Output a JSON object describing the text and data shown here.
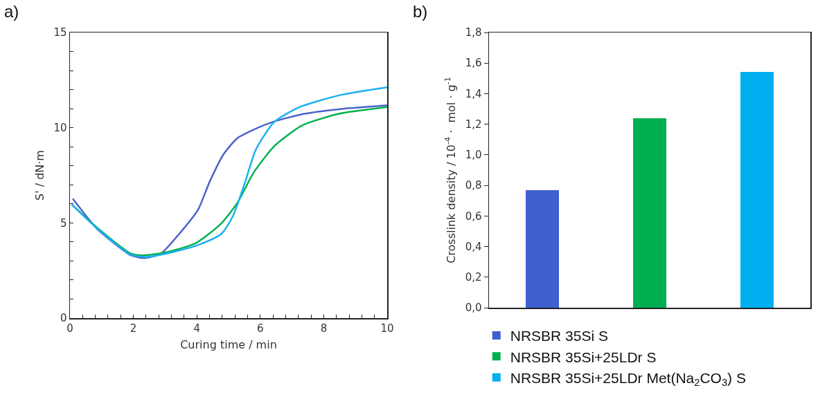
{
  "chart_data": [
    {
      "type": "line",
      "title": "a)",
      "xlabel": "Curing time / min",
      "ylabel": "S' / dN·m",
      "xlim": [
        0,
        10
      ],
      "ylim": [
        0,
        15
      ],
      "xticks": [
        0,
        {
          "value": 0.4,
          "label": null
        },
        {
          "value": 0.8,
          "label": null
        },
        {
          "value": 1.2,
          "label": null
        },
        {
          "value": 1.6,
          "label": null
        },
        2,
        {
          "value": 2.4,
          "label": null
        },
        {
          "value": 2.8,
          "label": null
        },
        {
          "value": 3.2,
          "label": null
        },
        {
          "value": 3.6,
          "label": null
        },
        4,
        {
          "value": 4.4,
          "label": null
        },
        {
          "value": 4.8,
          "label": null
        },
        {
          "value": 5.2,
          "label": null
        },
        {
          "value": 5.6,
          "label": null
        },
        6,
        {
          "value": 6.4,
          "label": null
        },
        {
          "value": 6.8,
          "label": null
        },
        {
          "value": 7.2,
          "label": null
        },
        {
          "value": 7.6,
          "label": null
        },
        8,
        {
          "value": 8.4,
          "label": null
        },
        {
          "value": 8.8,
          "label": null
        },
        {
          "value": 9.2,
          "label": null
        },
        {
          "value": 9.6,
          "label": null
        },
        10
      ],
      "yticks": [
        0,
        {
          "value": 1,
          "label": null
        },
        {
          "value": 2,
          "label": null
        },
        {
          "value": 3,
          "label": null
        },
        {
          "value": 4,
          "label": null
        },
        5,
        {
          "value": 6,
          "label": null
        },
        {
          "value": 7,
          "label": null
        },
        {
          "value": 8,
          "label": null
        },
        {
          "value": 9,
          "label": null
        },
        10,
        {
          "value": 11,
          "label": null
        },
        {
          "value": 12,
          "label": null
        },
        {
          "value": 13,
          "label": null
        },
        {
          "value": 14,
          "label": null
        },
        15
      ],
      "grid": false,
      "legend": false,
      "marker": "none",
      "line_style": "solid",
      "series": [
        {
          "color": "#4a63cc",
          "x": [
            0.09,
            0.83,
            1.92,
            2.36,
            2.87,
            3.38,
            4.04,
            4.4,
            4.84,
            5.28,
            5.93,
            6.44,
            7.39,
            8.48,
            10
          ],
          "values": [
            6.27,
            4.73,
            3.3,
            3.15,
            3.39,
            4.3,
            5.7,
            7.15,
            8.6,
            9.45,
            10.0,
            10.33,
            10.73,
            10.97,
            11.18
          ]
        },
        {
          "color": "#00b050",
          "x": [
            0.06,
            0.83,
            1.92,
            2.29,
            3.02,
            3.97,
            4.77,
            5.28,
            5.79,
            6.44,
            7.32,
            8.48,
            10
          ],
          "values": [
            5.96,
            4.79,
            3.39,
            3.3,
            3.45,
            3.94,
            4.97,
            6.06,
            7.64,
            9.03,
            10.12,
            10.73,
            11.09
          ]
        },
        {
          "color": "#1ab0f0",
          "x": [
            0.06,
            0.83,
            1.92,
            2.43,
            3.38,
            4.11,
            4.77,
            5.13,
            5.5,
            5.86,
            6.44,
            7.25,
            8.48,
            10
          ],
          "values": [
            5.96,
            4.75,
            3.33,
            3.21,
            3.52,
            3.88,
            4.42,
            5.33,
            7.03,
            8.85,
            10.3,
            11.09,
            11.7,
            12.12
          ]
        }
      ]
    },
    {
      "type": "bar",
      "title": "b)",
      "ylabel": "Crosslink density / 10$^{-4}$ ·  mol · g$^{-1}$",
      "categories": [
        null,
        null,
        null
      ],
      "stacked": true,
      "ylim": [
        0,
        1.8
      ],
      "yticks": [
        {
          "value": 0,
          "label": "0,0"
        },
        {
          "value": 0.2,
          "label": "0,2"
        },
        {
          "value": 0.4,
          "label": "0,4"
        },
        {
          "value": 0.6,
          "label": "0,6"
        },
        {
          "value": 0.8,
          "label": "0,8"
        },
        {
          "value": 1,
          "label": "1,0"
        },
        {
          "value": 1.2,
          "label": "1,2"
        },
        {
          "value": 1.4,
          "label": "1,4"
        },
        {
          "value": 1.6,
          "label": "1,6"
        },
        {
          "value": 1.8,
          "label": "1,8"
        }
      ],
      "grid": false,
      "legend": "bottom",
      "series": [
        {
          "name": "NRSBR 35Si S",
          "color": "#4060d0",
          "values": [
            0.77,
            null,
            null
          ]
        },
        {
          "name": "NRSBR 35Si+25LDr S",
          "color": "#00b050",
          "values": [
            null,
            1.24,
            null
          ]
        },
        {
          "name": "NRSBR 35Si+25LDr Met(Na$_{2}$CO$_{3}$) S",
          "color": "#00b0f0",
          "values": [
            null,
            null,
            1.54
          ]
        }
      ]
    }
  ]
}
